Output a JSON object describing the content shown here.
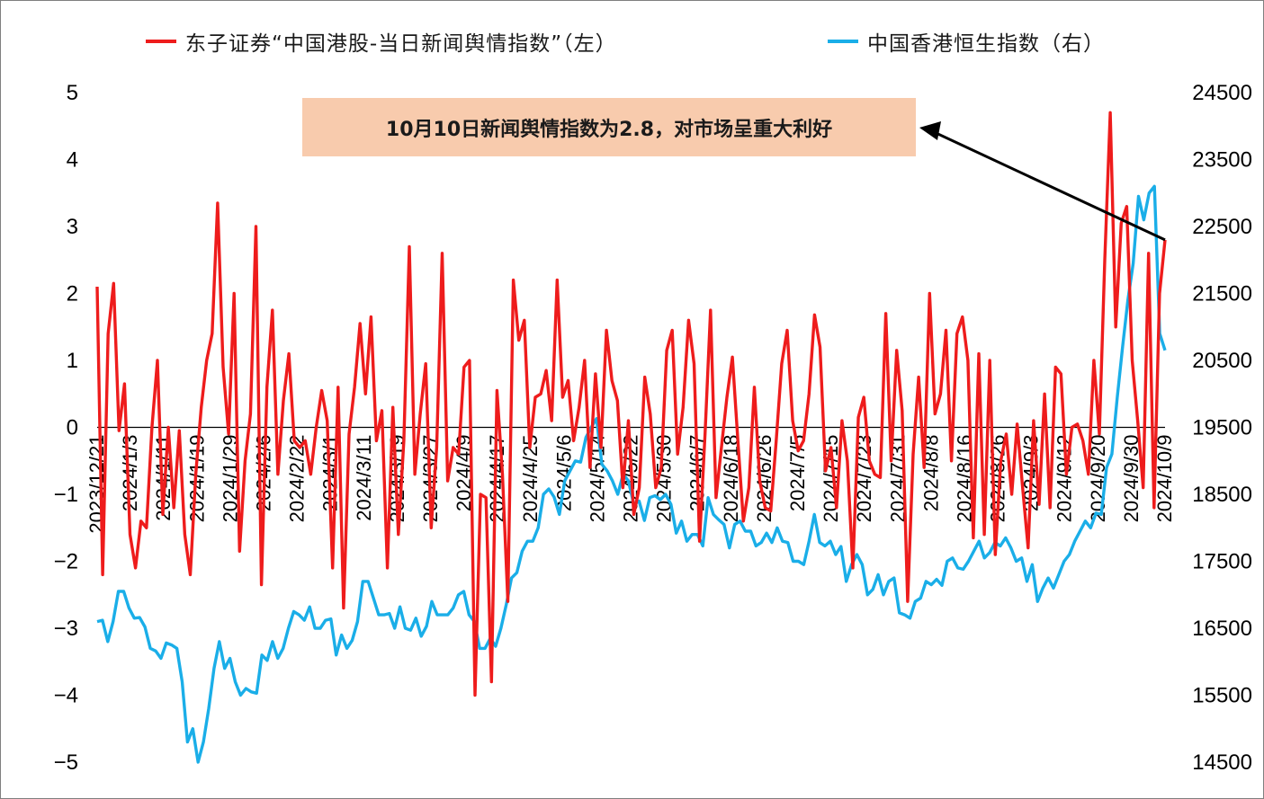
{
  "legend": {
    "left_series": "东子证券“中国港股-当日新闻舆情指数”（左）",
    "right_series": "中国香港恒生指数（右）"
  },
  "annotation": "10月10日新闻舆情指数为2.8，对市场呈重大利好",
  "colors": {
    "sentiment": "#ee1c1c",
    "hsi": "#1aaee8",
    "axis": "#000000",
    "annotation_bg": "#f8cbad"
  },
  "chart_data": {
    "type": "line",
    "x_tick_labels": [
      "2023/12/21",
      "2024/1/3",
      "2024/1/11",
      "2024/1/19",
      "2024/1/29",
      "2024/2/6",
      "2024/2/22",
      "2024/3/1",
      "2024/3/11",
      "2024/3/19",
      "2024/3/27",
      "2024/4/9",
      "2024/4/17",
      "2024/4/25",
      "2024/5/6",
      "2024/5/14",
      "2024/5/22",
      "2024/5/30",
      "2024/6/7",
      "2024/6/18",
      "2024/6/26",
      "2024/7/5",
      "2024/7/15",
      "2024/7/23",
      "2024/7/31",
      "2024/8/8",
      "2024/8/16",
      "2024/8/26",
      "2024/9/3",
      "2024/9/12",
      "2024/9/20",
      "2024/9/30",
      "2024/10/9"
    ],
    "y_left": {
      "lim": [
        -5,
        5
      ],
      "ticks": [
        "5",
        "4",
        "3",
        "2",
        "1",
        "0",
        "−1",
        "−2",
        "−3",
        "−4",
        "−5"
      ]
    },
    "y_right": {
      "lim": [
        14500,
        24500
      ],
      "ticks": [
        "24500",
        "23500",
        "22500",
        "21500",
        "20500",
        "19500",
        "18500",
        "17500",
        "16500",
        "15500",
        "14500"
      ]
    },
    "grid": false,
    "legend_position": "top",
    "series": [
      {
        "name": "东子证券“中国港股-当日新闻舆情指数”（左）",
        "axis": "left",
        "values": [
          2.1,
          -2.2,
          1.4,
          2.15,
          -0.05,
          0.65,
          -1.6,
          -2.1,
          -1.4,
          -1.5,
          0.0,
          1.0,
          -1.3,
          0.0,
          -1.2,
          -0.05,
          -1.6,
          -2.2,
          -0.7,
          0.3,
          1.0,
          1.4,
          3.35,
          0.9,
          -0.1,
          2.0,
          -1.85,
          -0.5,
          0.2,
          3.0,
          -2.35,
          0.6,
          1.75,
          -0.7,
          0.4,
          1.1,
          -0.2,
          -0.3,
          -0.2,
          -0.7,
          0.0,
          0.55,
          0.1,
          -2.1,
          0.6,
          -2.7,
          -0.1,
          0.6,
          1.55,
          0.5,
          1.65,
          -0.2,
          0.25,
          -2.1,
          0.3,
          -1.6,
          -0.2,
          2.7,
          -0.7,
          0.2,
          0.95,
          -1.5,
          -0.3,
          2.6,
          -0.8,
          -0.3,
          -0.4,
          0.9,
          1.0,
          -4.0,
          -1.0,
          -1.05,
          -3.8,
          0.55,
          -0.7,
          -2.6,
          2.2,
          1.3,
          1.6,
          -0.3,
          0.45,
          0.5,
          0.85,
          0.1,
          2.2,
          0.45,
          0.7,
          -0.2,
          0.3,
          1.0,
          -0.6,
          0.8,
          -0.3,
          1.45,
          0.7,
          0.4,
          -0.9,
          0.1,
          -1.3,
          -0.9,
          0.75,
          0.2,
          -0.9,
          -0.6,
          1.15,
          1.45,
          -0.4,
          0.3,
          1.6,
          0.95,
          -1.7,
          -0.1,
          1.75,
          -1.05,
          -0.3,
          0.45,
          1.05,
          -0.2,
          -1.4,
          -0.9,
          0.6,
          -0.8,
          -1.2,
          -1.25,
          -0.2,
          0.95,
          1.45,
          0.1,
          -0.35,
          -0.2,
          0.5,
          1.68,
          1.2,
          -0.65,
          -0.3,
          -1.2,
          0.1,
          -0.5,
          -2.1,
          0.15,
          0.45,
          -0.5,
          -0.7,
          -0.75,
          1.7,
          -0.5,
          1.15,
          0.25,
          -2.6,
          -0.4,
          0.75,
          -0.6,
          2.0,
          0.2,
          0.5,
          1.45,
          -0.5,
          1.4,
          1.65,
          1.0,
          -1.65,
          1.1,
          -1.6,
          1.0,
          -1.9,
          -0.5,
          -0.1,
          -1.0,
          0.05,
          -0.9,
          -1.8,
          0.1,
          -1.15,
          0.5,
          -1.2,
          0.9,
          0.8,
          -0.7,
          0.0,
          0.05,
          -0.2,
          -0.7,
          1.0,
          -0.1,
          2.5,
          4.7,
          1.5,
          3.05,
          3.3,
          1.0,
          0.1,
          -0.9,
          2.6,
          -1.2,
          2.0,
          2.8
        ]
      },
      {
        "name": "中国香港恒生指数（右）",
        "axis": "right",
        "values": [
          16600,
          16620,
          16300,
          16600,
          17050,
          17050,
          16800,
          16650,
          16660,
          16520,
          16200,
          16160,
          16050,
          16280,
          16250,
          16200,
          15700,
          14800,
          15000,
          14500,
          14800,
          15300,
          15900,
          16300,
          15900,
          16050,
          15700,
          15500,
          15600,
          15550,
          15530,
          16100,
          16020,
          16300,
          16050,
          16200,
          16500,
          16750,
          16700,
          16620,
          16820,
          16500,
          16500,
          16620,
          16640,
          16100,
          16400,
          16200,
          16320,
          16600,
          17200,
          17200,
          16950,
          16700,
          16700,
          16720,
          16500,
          16820,
          16500,
          16470,
          16650,
          16380,
          16530,
          16900,
          16700,
          16700,
          16700,
          16800,
          17000,
          17050,
          16700,
          16600,
          16200,
          16200,
          16350,
          16230,
          16500,
          16850,
          17250,
          17330,
          17650,
          17800,
          17800,
          18000,
          18500,
          18580,
          18460,
          18200,
          18700,
          18850,
          19000,
          18980,
          19350,
          19500,
          19630,
          18950,
          18850,
          18700,
          18500,
          18800,
          18700,
          18350,
          18400,
          18110,
          18450,
          18480,
          18420,
          18500,
          18350,
          17920,
          18100,
          17800,
          17900,
          17900,
          17730,
          18450,
          18200,
          18120,
          18050,
          17700,
          18050,
          18100,
          17950,
          17950,
          17730,
          17780,
          17920,
          17780,
          18000,
          17800,
          17780,
          17500,
          17500,
          17450,
          17800,
          18200,
          17780,
          17730,
          17800,
          17600,
          17720,
          17200,
          17450,
          17600,
          17450,
          17000,
          17080,
          17300,
          17000,
          17200,
          17250,
          16730,
          16700,
          16650,
          16900,
          16950,
          17200,
          17150,
          17230,
          17140,
          17500,
          17550,
          17400,
          17380,
          17500,
          17650,
          17800,
          17550,
          17630,
          17780,
          17730,
          17850,
          17700,
          17500,
          17550,
          17200,
          17450,
          16900,
          17100,
          17250,
          17100,
          17300,
          17500,
          17600,
          17800,
          17950,
          18100,
          18000,
          18220,
          18200,
          18900,
          19100,
          19950,
          20700,
          21400,
          21950,
          22950,
          22600,
          23000,
          23100,
          20900,
          20650
        ]
      }
    ]
  }
}
